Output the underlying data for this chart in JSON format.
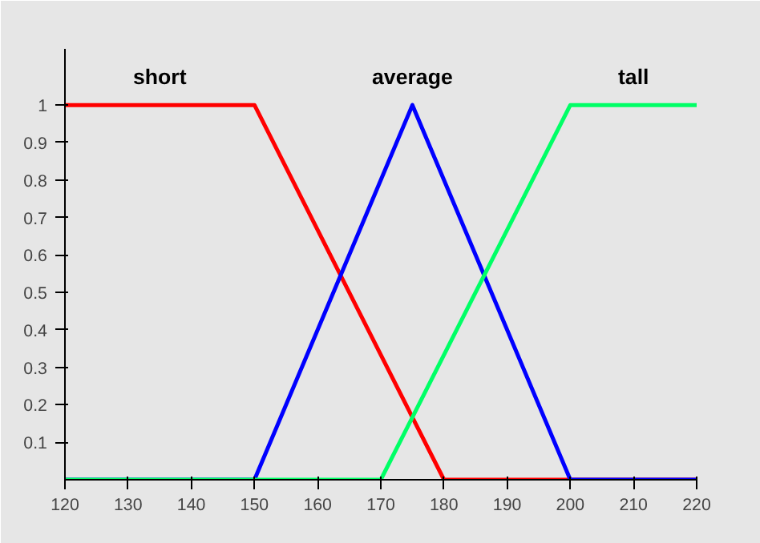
{
  "chart_data": {
    "type": "line",
    "series": [
      {
        "name": "short",
        "color": "#ff0000",
        "x": [
          120,
          150,
          180,
          220
        ],
        "values": [
          1,
          1,
          0,
          0
        ]
      },
      {
        "name": "average",
        "color": "#0000ff",
        "x": [
          120,
          150,
          175,
          200,
          220
        ],
        "values": [
          0,
          0,
          1,
          0,
          0
        ]
      },
      {
        "name": "tall",
        "color": "#00ff66",
        "x": [
          120,
          170,
          200,
          220
        ],
        "values": [
          0,
          0,
          1,
          1
        ]
      }
    ],
    "xlim": [
      120,
      220
    ],
    "ylim": [
      0,
      1.15
    ],
    "xticks": [
      120,
      130,
      140,
      150,
      160,
      170,
      180,
      190,
      200,
      210,
      220
    ],
    "yticks": [
      0.1,
      0.2,
      0.3,
      0.4,
      0.5,
      0.6,
      0.7,
      0.8,
      0.9,
      1
    ],
    "legend": false,
    "marker": "none",
    "line_style": "solid"
  }
}
